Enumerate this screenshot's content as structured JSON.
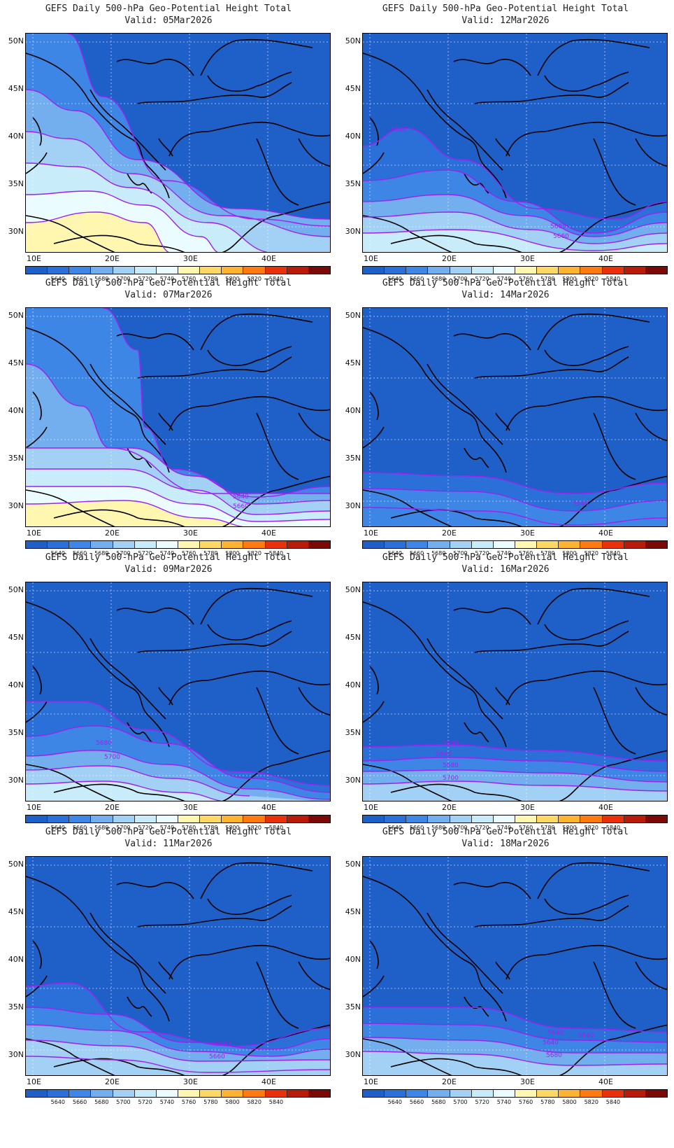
{
  "title_line1": "GEFS Daily 500-hPa Geo-Potential Height Total",
  "valid_prefix": "Valid:",
  "lat_labels": [
    "50N",
    "45N",
    "40N",
    "35N",
    "30N"
  ],
  "lon_labels": [
    "10E",
    "20E",
    "30E",
    "40E"
  ],
  "colorbar": {
    "colors": [
      "#1f5fc8",
      "#2b6fd8",
      "#3d86e6",
      "#73aeee",
      "#a3d0f5",
      "#c8ecf9",
      "#eafcff",
      "#fff6b0",
      "#ffd866",
      "#ffb330",
      "#ff7a10",
      "#e8300b",
      "#b81b0a",
      "#7a0a05"
    ],
    "labels": [
      "5640",
      "5660",
      "5680",
      "5700",
      "5720",
      "5740",
      "5760",
      "5780",
      "5800",
      "5820",
      "5840"
    ]
  },
  "panels": [
    {
      "valid": "05Mar2026",
      "contour_labels": []
    },
    {
      "valid": "12Mar2026",
      "contour_labels": [
        "5640",
        "5660",
        "5660"
      ]
    },
    {
      "valid": "07Mar2026",
      "contour_labels": [
        "5640",
        "5660"
      ]
    },
    {
      "valid": "14Mar2026",
      "contour_labels": [
        "5640"
      ]
    },
    {
      "valid": "09Mar2026",
      "contour_labels": [
        "5680",
        "5700"
      ]
    },
    {
      "valid": "16Mar2026",
      "contour_labels": [
        "5640",
        "5660",
        "5680",
        "5700"
      ]
    },
    {
      "valid": "11Mar2026",
      "contour_labels": [
        "5640",
        "5660"
      ]
    },
    {
      "valid": "18Mar2026",
      "contour_labels": [
        "5640",
        "5660",
        "5680",
        "5640"
      ]
    }
  ]
}
